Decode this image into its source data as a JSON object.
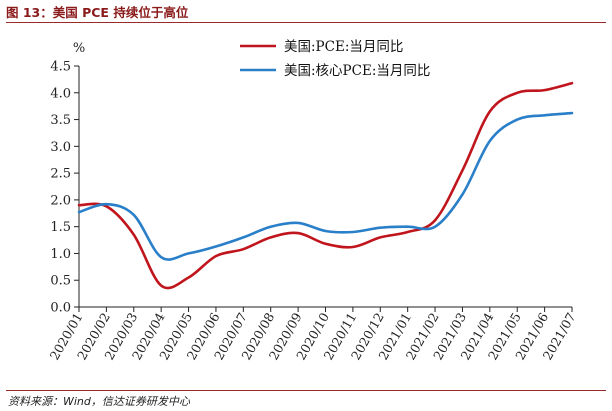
{
  "figure": {
    "title": "图 13：美国 PCE 持续位于高位",
    "source": "资料来源：Wind，信达证券研发中心"
  },
  "chart_data": {
    "type": "line",
    "title": "",
    "xlabel": "",
    "ylabel": "%",
    "ylim": [
      0.0,
      4.5
    ],
    "yticks": [
      0.0,
      0.5,
      1.0,
      1.5,
      2.0,
      2.5,
      3.0,
      3.5,
      4.0,
      4.5
    ],
    "ytick_labels": [
      "0.0",
      "0.5",
      "1.0",
      "1.5",
      "2.0",
      "2.5",
      "3.0",
      "3.5",
      "4.0",
      "4.5"
    ],
    "grid": false,
    "legend_position": "top-right",
    "categories": [
      "2020/01",
      "2020/02",
      "2020/03",
      "2020/04",
      "2020/05",
      "2020/06",
      "2020/07",
      "2020/08",
      "2020/09",
      "2020/10",
      "2020/11",
      "2020/12",
      "2021/01",
      "2021/02",
      "2021/03",
      "2021/04",
      "2021/05",
      "2021/06",
      "2021/07"
    ],
    "series": [
      {
        "name": "美国:PCE:当月同比",
        "color": "#c0151c",
        "values": [
          1.9,
          1.88,
          1.35,
          0.4,
          0.55,
          0.95,
          1.08,
          1.3,
          1.38,
          1.18,
          1.12,
          1.3,
          1.4,
          1.62,
          2.55,
          3.65,
          4.0,
          4.05,
          4.18
        ]
      },
      {
        "name": "美国:核心PCE:当月同比",
        "color": "#2a7fc9",
        "values": [
          1.77,
          1.92,
          1.72,
          0.93,
          1.0,
          1.13,
          1.3,
          1.5,
          1.57,
          1.42,
          1.4,
          1.48,
          1.5,
          1.5,
          2.1,
          3.1,
          3.5,
          3.58,
          3.62
        ]
      }
    ]
  }
}
